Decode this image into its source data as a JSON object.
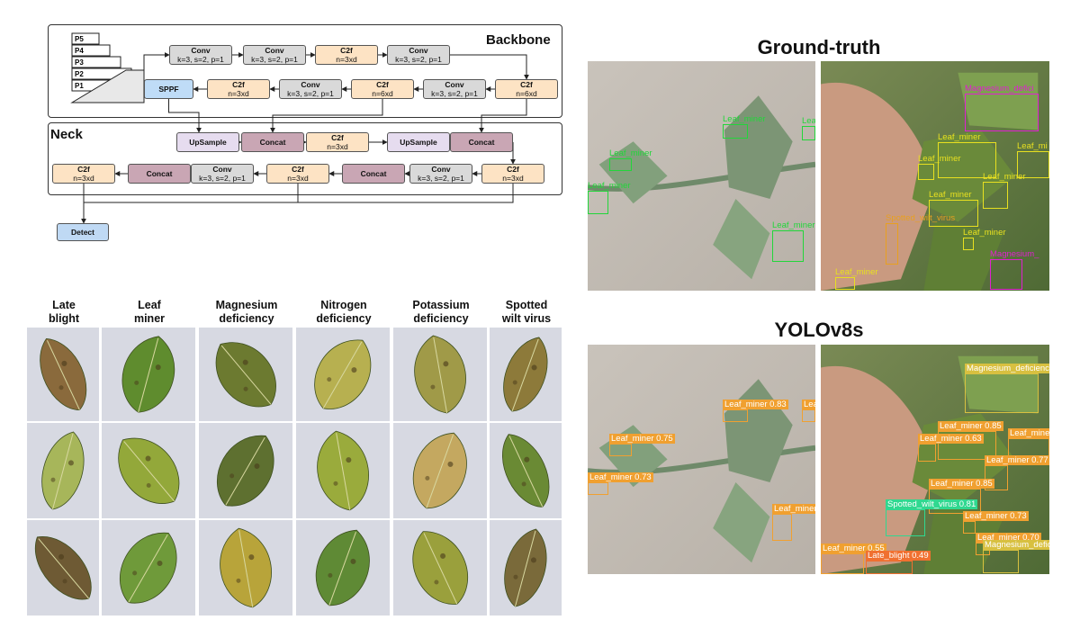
{
  "backbone": {
    "title": "Backbone",
    "pyramid": [
      "P5",
      "P4",
      "P3",
      "P2",
      "P1"
    ],
    "top_row": [
      {
        "name": "Conv",
        "param": "k=3, s=2, p=1",
        "kind": "conv"
      },
      {
        "name": "Conv",
        "param": "k=3, s=2, p=1",
        "kind": "conv"
      },
      {
        "name": "C2f",
        "param": "n=3xd",
        "kind": "c2f"
      },
      {
        "name": "Conv",
        "param": "k=3, s=2, p=1",
        "kind": "conv"
      }
    ],
    "bottom_row": [
      {
        "name": "SPPF",
        "param": "",
        "kind": "sppf"
      },
      {
        "name": "C2f",
        "param": "n=3xd",
        "kind": "c2f"
      },
      {
        "name": "Conv",
        "param": "k=3, s=2, p=1",
        "kind": "conv"
      },
      {
        "name": "C2f",
        "param": "n=6xd",
        "kind": "c2f"
      },
      {
        "name": "Conv",
        "param": "k=3, s=2, p=1",
        "kind": "conv"
      },
      {
        "name": "C2f",
        "param": "n=6xd",
        "kind": "c2f"
      }
    ]
  },
  "neck": {
    "title": "Neck",
    "top_row": [
      {
        "name": "UpSample",
        "param": "",
        "kind": "ups"
      },
      {
        "name": "Concat",
        "param": "",
        "kind": "concat"
      },
      {
        "name": "C2f",
        "param": "n=3xd",
        "kind": "c2f"
      },
      {
        "name": "UpSample",
        "param": "",
        "kind": "ups"
      },
      {
        "name": "Concat",
        "param": "",
        "kind": "concat"
      }
    ],
    "bottom_row": [
      {
        "name": "C2f",
        "param": "n=3xd",
        "kind": "c2f"
      },
      {
        "name": "Concat",
        "param": "",
        "kind": "concat"
      },
      {
        "name": "Conv",
        "param": "k=3, s=2, p=1",
        "kind": "conv"
      },
      {
        "name": "C2f",
        "param": "n=3xd",
        "kind": "c2f"
      },
      {
        "name": "Concat",
        "param": "",
        "kind": "concat"
      },
      {
        "name": "Conv",
        "param": "k=3, s=2, p=1",
        "kind": "conv"
      },
      {
        "name": "C2f",
        "param": "n=3xd",
        "kind": "c2f"
      }
    ],
    "detect": "Detect"
  },
  "leaf_grid": {
    "columns": [
      {
        "label": "Late\nblight",
        "leaf_colors": [
          "#8a6a3c",
          "#a7b65a",
          "#6e5a34"
        ]
      },
      {
        "label": "Leaf\nminer",
        "leaf_colors": [
          "#5f8c2e",
          "#93a83a",
          "#6f9a3a"
        ]
      },
      {
        "label": "Magnesium\ndeficiency",
        "leaf_colors": [
          "#6c7a30",
          "#5e7030",
          "#b8a43a"
        ]
      },
      {
        "label": "Nitrogen\ndeficiency",
        "leaf_colors": [
          "#b7b050",
          "#9aab3c",
          "#5f8a35"
        ]
      },
      {
        "label": "Potassium\ndeficiency",
        "leaf_colors": [
          "#a09a48",
          "#c4a860",
          "#9aa03c"
        ]
      },
      {
        "label": "Spotted\nwilt virus",
        "leaf_colors": [
          "#8d7a3a",
          "#6a8a34",
          "#7a6a3a"
        ]
      }
    ]
  },
  "ground_truth": {
    "title": "Ground-truth",
    "left_boxes": [
      {
        "label": "Leaf_miner",
        "color": "#22d63a"
      },
      {
        "label": "Leaf_miner",
        "color": "#22d63a"
      },
      {
        "label": "Leaf_miner",
        "color": "#22d63a"
      },
      {
        "label": "Leaf_miner",
        "color": "#22d63a"
      },
      {
        "label": "Lea",
        "color": "#22d63a"
      }
    ],
    "right_boxes": [
      {
        "label": "Magnesium_defici",
        "color": "#e020d0"
      },
      {
        "label": "Leaf_miner",
        "color": "#e8e020"
      },
      {
        "label": "Leaf_mi",
        "color": "#e8e020"
      },
      {
        "label": "Leaf_miner",
        "color": "#e8e020"
      },
      {
        "label": "Leaf_miner",
        "color": "#e8e020"
      },
      {
        "label": "Leaf_miner",
        "color": "#e8e020"
      },
      {
        "label": "Spotted_wilt_virus",
        "color": "#e8a020"
      },
      {
        "label": "Leaf_miner",
        "color": "#e8e020"
      },
      {
        "label": "Magnesium_",
        "color": "#e020d0"
      },
      {
        "label": "Leaf_miner",
        "color": "#e8e020"
      }
    ]
  },
  "yolo": {
    "title": "YOLOv8s",
    "left_boxes": [
      {
        "label": "Leaf_miner 0.75",
        "color": "#f0a030"
      },
      {
        "label": "Leaf_miner 0.73",
        "color": "#f0a030"
      },
      {
        "label": "Leaf_miner 0.83",
        "color": "#f0a030"
      },
      {
        "label": "Leaf_miner",
        "color": "#f0a030"
      },
      {
        "label": "Lea",
        "color": "#f0a030"
      }
    ],
    "right_boxes": [
      {
        "label": "Magnesium_deficiency",
        "color": "#d8c040"
      },
      {
        "label": "Leaf_miner 0.85",
        "color": "#f0a030"
      },
      {
        "label": "Leaf_miner 0.63",
        "color": "#f0a030"
      },
      {
        "label": "Leaf_miner",
        "color": "#f0a030"
      },
      {
        "label": "Leaf_miner 0.77",
        "color": "#f0a030"
      },
      {
        "label": "Leaf_miner 0.85",
        "color": "#f0a030"
      },
      {
        "label": "Spotted_wilt_virus 0.81",
        "color": "#30d890"
      },
      {
        "label": "Leaf_miner 0.73",
        "color": "#f0a030"
      },
      {
        "label": "Leaf_miner 0.70",
        "color": "#f0a030"
      },
      {
        "label": "Magnesium_defici",
        "color": "#d8c040"
      },
      {
        "label": "Leaf_miner 0.55",
        "color": "#f0a030"
      },
      {
        "label": "Late_blight 0.49",
        "color": "#f07030"
      }
    ]
  }
}
